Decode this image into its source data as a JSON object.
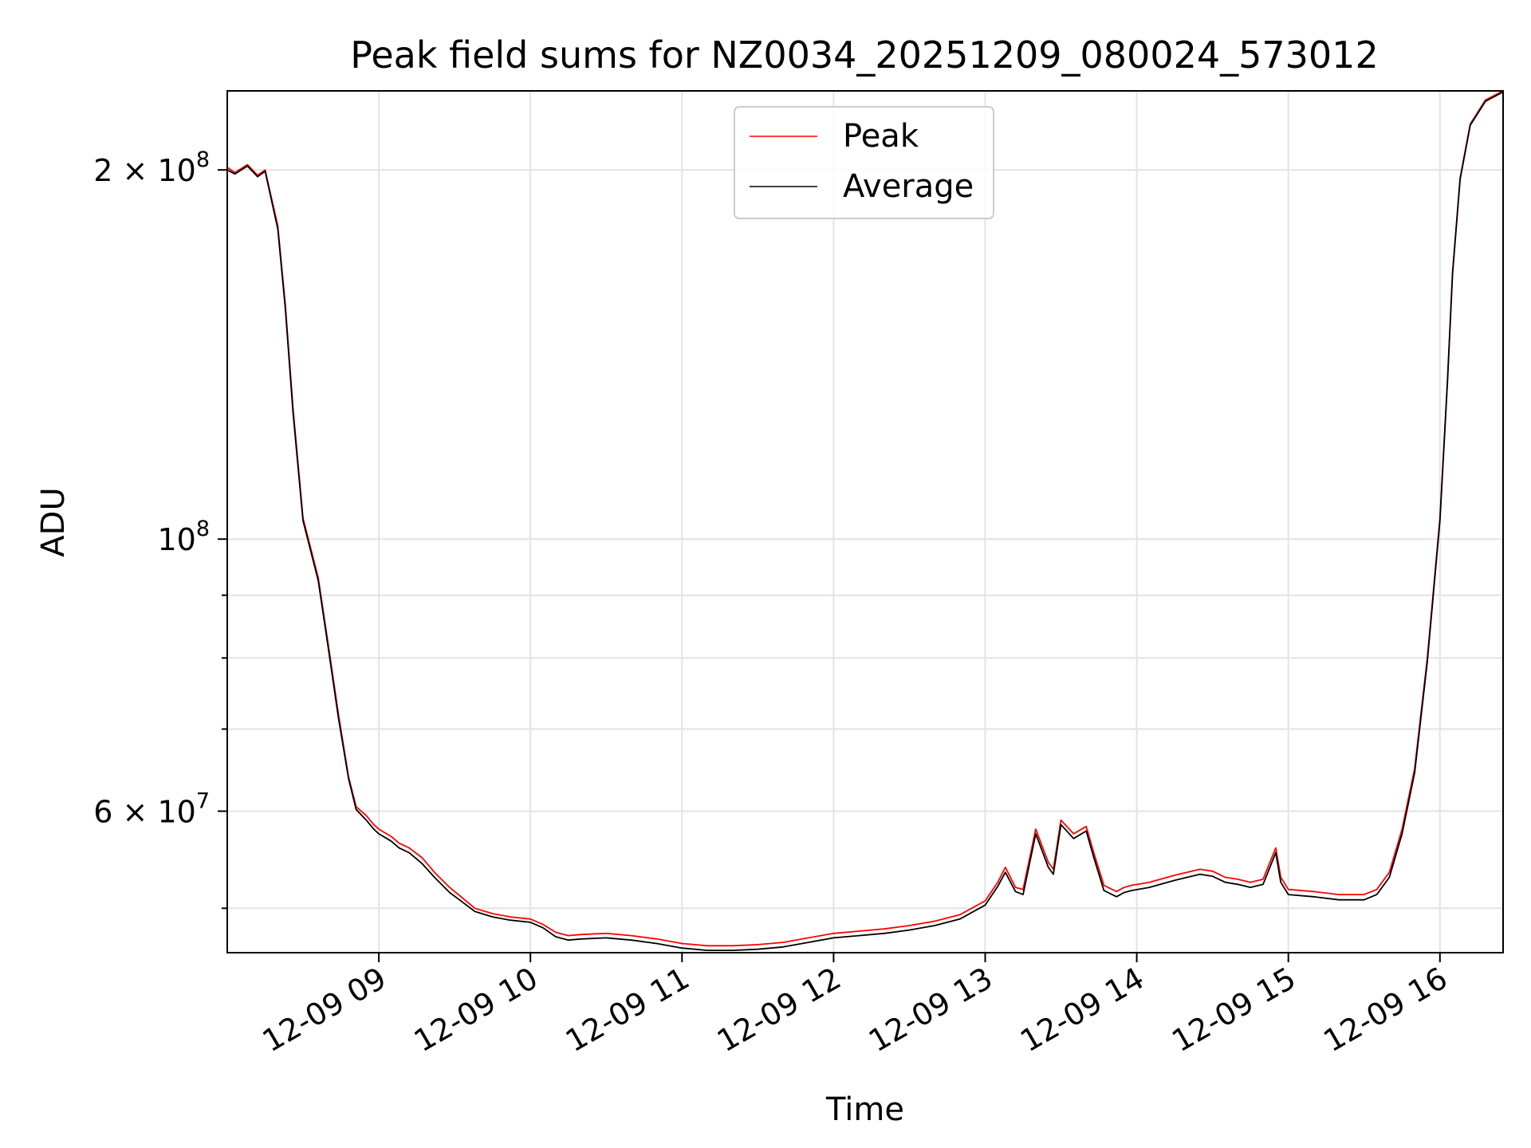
{
  "chart_data": {
    "type": "line",
    "title": "Peak field sums for NZ0034_20251209_080024_573012",
    "xlabel": "Time",
    "ylabel": "ADU",
    "yscale": "log",
    "grid": true,
    "legend_placement": "top-center",
    "xlim": [
      "2025-12-09 08:00",
      "2025-12-09 16:25"
    ],
    "ylim": [
      46000000,
      232000000
    ],
    "x_ticks": [
      "12-09 09",
      "12-09 10",
      "12-09 11",
      "12-09 12",
      "12-09 13",
      "12-09 14",
      "12-09 15",
      "12-09 16"
    ],
    "x_tick_times": [
      "2025-12-09 09:00",
      "2025-12-09 10:00",
      "2025-12-09 11:00",
      "2025-12-09 12:00",
      "2025-12-09 13:00",
      "2025-12-09 14:00",
      "2025-12-09 15:00",
      "2025-12-09 16:00"
    ],
    "y_tick_labels": [
      {
        "value": 200000000,
        "mantissa": "2",
        "exponent": "8"
      },
      {
        "value": 100000000,
        "mantissa": "",
        "exponent": "8"
      },
      {
        "value": 60000000,
        "mantissa": "6",
        "exponent": "7"
      }
    ],
    "series": [
      {
        "name": "Peak",
        "color": "#ff0000",
        "x": [
          "08:00",
          "08:03",
          "08:08",
          "08:12",
          "08:15",
          "08:20",
          "08:23",
          "08:26",
          "08:30",
          "08:36",
          "08:40",
          "08:44",
          "08:48",
          "08:51",
          "08:55",
          "08:58",
          "09:00",
          "09:05",
          "09:08",
          "09:12",
          "09:17",
          "09:22",
          "09:28",
          "09:33",
          "09:38",
          "09:45",
          "09:52",
          "10:00",
          "10:05",
          "10:10",
          "10:15",
          "10:20",
          "10:30",
          "10:40",
          "10:50",
          "11:00",
          "11:10",
          "11:20",
          "11:30",
          "11:40",
          "11:50",
          "12:00",
          "12:10",
          "12:20",
          "12:30",
          "12:40",
          "12:50",
          "13:00",
          "13:05",
          "13:08",
          "13:12",
          "13:15",
          "13:20",
          "13:25",
          "13:27",
          "13:30",
          "13:35",
          "13:40",
          "13:43",
          "13:47",
          "13:52",
          "13:55",
          "13:58",
          "14:05",
          "14:15",
          "14:25",
          "14:30",
          "14:35",
          "14:40",
          "14:45",
          "14:50",
          "14:55",
          "14:57",
          "15:00",
          "15:10",
          "15:20",
          "15:30",
          "15:35",
          "15:40",
          "15:45",
          "15:50",
          "15:55",
          "16:00",
          "16:03",
          "16:05",
          "16:08",
          "16:12",
          "16:18",
          "16:25"
        ],
        "y": [
          201000000,
          199000000,
          202000000,
          198000000,
          200000000,
          180000000,
          155000000,
          128000000,
          104000000,
          93000000,
          82000000,
          72000000,
          64000000,
          60500000,
          59500000,
          58500000,
          58000000,
          57200000,
          56500000,
          56000000,
          55000000,
          53500000,
          52000000,
          51000000,
          50000000,
          49500000,
          49200000,
          49000000,
          48500000,
          47800000,
          47500000,
          47600000,
          47700000,
          47500000,
          47200000,
          46800000,
          46600000,
          46600000,
          46700000,
          46900000,
          47300000,
          47700000,
          47900000,
          48100000,
          48400000,
          48800000,
          49400000,
          50700000,
          52500000,
          54000000,
          52000000,
          51800000,
          58000000,
          54500000,
          53800000,
          59000000,
          57500000,
          58300000,
          55500000,
          52200000,
          51600000,
          52000000,
          52200000,
          52500000,
          53200000,
          53800000,
          53600000,
          53000000,
          52800000,
          52500000,
          52800000,
          56000000,
          53000000,
          51800000,
          51600000,
          51300000,
          51300000,
          51800000,
          53500000,
          58000000,
          65000000,
          80000000,
          104000000,
          135000000,
          165000000,
          197000000,
          218000000,
          228000000,
          232000000
        ]
      },
      {
        "name": "Average",
        "color": "#000000",
        "x": [
          "08:00",
          "08:03",
          "08:08",
          "08:12",
          "08:15",
          "08:20",
          "08:23",
          "08:26",
          "08:30",
          "08:36",
          "08:40",
          "08:44",
          "08:48",
          "08:51",
          "08:55",
          "08:58",
          "09:00",
          "09:05",
          "09:08",
          "09:12",
          "09:17",
          "09:22",
          "09:28",
          "09:33",
          "09:38",
          "09:45",
          "09:52",
          "10:00",
          "10:05",
          "10:10",
          "10:15",
          "10:20",
          "10:30",
          "10:40",
          "10:50",
          "11:00",
          "11:10",
          "11:20",
          "11:30",
          "11:40",
          "11:50",
          "12:00",
          "12:10",
          "12:20",
          "12:30",
          "12:40",
          "12:50",
          "13:00",
          "13:05",
          "13:08",
          "13:12",
          "13:15",
          "13:20",
          "13:25",
          "13:27",
          "13:30",
          "13:35",
          "13:40",
          "13:43",
          "13:47",
          "13:52",
          "13:55",
          "13:58",
          "14:05",
          "14:15",
          "14:25",
          "14:30",
          "14:35",
          "14:40",
          "14:45",
          "14:50",
          "14:55",
          "14:57",
          "15:00",
          "15:10",
          "15:20",
          "15:30",
          "15:35",
          "15:40",
          "15:45",
          "15:50",
          "15:55",
          "16:00",
          "16:03",
          "16:05",
          "16:08",
          "16:12",
          "16:18",
          "16:25"
        ],
        "y": [
          200000000,
          198500000,
          201500000,
          197500000,
          199500000,
          179000000,
          154000000,
          127000000,
          103500000,
          92500000,
          81500000,
          71500000,
          63800000,
          60200000,
          59000000,
          58000000,
          57500000,
          56700000,
          56000000,
          55500000,
          54400000,
          53000000,
          51500000,
          50600000,
          49700000,
          49200000,
          48900000,
          48700000,
          48200000,
          47400000,
          47100000,
          47200000,
          47300000,
          47100000,
          46800000,
          46400000,
          46200000,
          46200000,
          46300000,
          46500000,
          46900000,
          47300000,
          47500000,
          47700000,
          48000000,
          48400000,
          49000000,
          50300000,
          52100000,
          53500000,
          51600000,
          51300000,
          57500000,
          54000000,
          53300000,
          58500000,
          57000000,
          57800000,
          55000000,
          51700000,
          51100000,
          51500000,
          51700000,
          52000000,
          52700000,
          53300000,
          53100000,
          52500000,
          52300000,
          52000000,
          52300000,
          55500000,
          52500000,
          51300000,
          51100000,
          50800000,
          50800000,
          51300000,
          53000000,
          57500000,
          64500000,
          79500000,
          103500000,
          134500000,
          164500000,
          196500000,
          217500000,
          227500000,
          231500000
        ]
      }
    ]
  }
}
